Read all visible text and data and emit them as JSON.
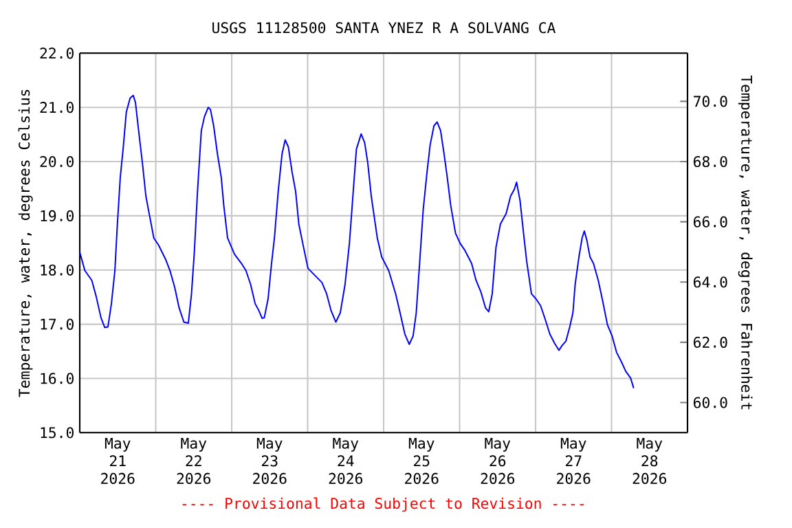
{
  "chart_data": {
    "type": "line",
    "title": "USGS 11128500 SANTA YNEZ R A SOLVANG CA",
    "ylabel": "Temperature, water, degrees Celsius",
    "y2label": "Temperature, water, degrees Fahrenheit",
    "annotations": [
      "---- Provisional Data Subject to Revision ----"
    ],
    "x": [
      "2026-05-21T00:00",
      "2026-05-21T01:36",
      "2026-05-21T03:48",
      "2026-05-21T05:12",
      "2026-05-21T06:42",
      "2026-05-21T07:54",
      "2026-05-21T08:54",
      "2026-05-21T10:00",
      "2026-05-21T11:06",
      "2026-05-21T11:48",
      "2026-05-21T12:48",
      "2026-05-21T13:42",
      "2026-05-21T14:42",
      "2026-05-21T15:54",
      "2026-05-21T16:54",
      "2026-05-21T17:36",
      "2026-05-21T18:36",
      "2026-05-21T19:48",
      "2026-05-21T20:54",
      "2026-05-21T22:00",
      "2026-05-21T23:24",
      "2026-05-22T00:54",
      "2026-05-22T03:06",
      "2026-05-22T04:30",
      "2026-05-22T06:00",
      "2026-05-22T07:24",
      "2026-05-22T08:54",
      "2026-05-22T10:18",
      "2026-05-22T11:18",
      "2026-05-22T12:12",
      "2026-05-22T13:12",
      "2026-05-22T14:24",
      "2026-05-22T15:24",
      "2026-05-22T16:36",
      "2026-05-22T17:18",
      "2026-05-22T18:18",
      "2026-05-22T19:30",
      "2026-05-22T20:42",
      "2026-05-22T21:30",
      "2026-05-22T22:42",
      "2026-05-23T00:54",
      "2026-05-23T03:06",
      "2026-05-23T04:30",
      "2026-05-23T06:00",
      "2026-05-23T07:24",
      "2026-05-23T08:36",
      "2026-05-23T09:36",
      "2026-05-23T10:18",
      "2026-05-23T11:30",
      "2026-05-23T12:30",
      "2026-05-23T13:30",
      "2026-05-23T14:42",
      "2026-05-23T15:54",
      "2026-05-23T16:54",
      "2026-05-23T17:54",
      "2026-05-23T19:06",
      "2026-05-23T20:12",
      "2026-05-23T21:12",
      "2026-05-23T22:42",
      "2026-05-24T00:06",
      "2026-05-24T02:18",
      "2026-05-24T04:30",
      "2026-05-24T06:00",
      "2026-05-24T07:24",
      "2026-05-24T08:54",
      "2026-05-24T10:18",
      "2026-05-24T11:48",
      "2026-05-24T13:12",
      "2026-05-24T14:24",
      "2026-05-24T15:24",
      "2026-05-24T16:54",
      "2026-05-24T18:00",
      "2026-05-24T19:00",
      "2026-05-24T20:06",
      "2026-05-24T22:00",
      "2026-05-24T23:24",
      "2026-05-25T01:36",
      "2026-05-25T03:48",
      "2026-05-25T05:12",
      "2026-05-25T06:42",
      "2026-05-25T08:06",
      "2026-05-25T09:18",
      "2026-05-25T10:18",
      "2026-05-25T11:30",
      "2026-05-25T12:30",
      "2026-05-25T13:42",
      "2026-05-25T14:42",
      "2026-05-25T15:54",
      "2026-05-25T16:54",
      "2026-05-25T18:00",
      "2026-05-25T19:06",
      "2026-05-25T20:06",
      "2026-05-25T21:12",
      "2026-05-25T22:42",
      "2026-05-26T00:06",
      "2026-05-26T01:36",
      "2026-05-26T03:48",
      "2026-05-26T05:12",
      "2026-05-26T06:42",
      "2026-05-26T08:12",
      "2026-05-26T09:12",
      "2026-05-26T10:18",
      "2026-05-26T11:30",
      "2026-05-26T12:54",
      "2026-05-26T14:42",
      "2026-05-26T16:06",
      "2026-05-26T17:18",
      "2026-05-26T18:00",
      "2026-05-26T19:06",
      "2026-05-26T20:12",
      "2026-05-26T21:12",
      "2026-05-26T22:42",
      "2026-05-27T00:06",
      "2026-05-27T01:36",
      "2026-05-27T03:06",
      "2026-05-27T04:30",
      "2026-05-27T06:00",
      "2026-05-27T07:24",
      "2026-05-27T08:24",
      "2026-05-27T09:36",
      "2026-05-27T10:48",
      "2026-05-27T11:48",
      "2026-05-27T12:30",
      "2026-05-27T13:42",
      "2026-05-27T14:42",
      "2026-05-27T15:24",
      "2026-05-27T16:12",
      "2026-05-27T17:12",
      "2026-05-27T18:18",
      "2026-05-27T19:48",
      "2026-05-27T21:12",
      "2026-05-27T22:42",
      "2026-05-28T00:12",
      "2026-05-28T01:36",
      "2026-05-28T03:06",
      "2026-05-28T04:30",
      "2026-05-28T06:00",
      "2026-05-28T07:00"
    ],
    "series": [
      {
        "color": "#0000ff",
        "values": [
          18.33,
          17.99,
          17.81,
          17.51,
          17.12,
          16.94,
          16.95,
          17.38,
          17.99,
          18.76,
          19.71,
          20.23,
          20.91,
          21.17,
          21.22,
          21.09,
          20.57,
          19.97,
          19.36,
          19.02,
          18.59,
          18.46,
          18.2,
          17.99,
          17.68,
          17.3,
          17.04,
          17.02,
          17.56,
          18.33,
          19.45,
          20.57,
          20.83,
          21.0,
          20.96,
          20.66,
          20.14,
          19.71,
          19.19,
          18.59,
          18.29,
          18.12,
          17.99,
          17.73,
          17.38,
          17.25,
          17.11,
          17.12,
          17.47,
          18.07,
          18.59,
          19.45,
          20.14,
          20.4,
          20.27,
          19.8,
          19.45,
          18.85,
          18.42,
          18.03,
          17.9,
          17.77,
          17.56,
          17.25,
          17.04,
          17.21,
          17.73,
          18.5,
          19.45,
          20.23,
          20.51,
          20.35,
          19.97,
          19.36,
          18.59,
          18.24,
          17.99,
          17.56,
          17.21,
          16.82,
          16.63,
          16.78,
          17.21,
          18.24,
          19.11,
          19.8,
          20.31,
          20.66,
          20.73,
          20.57,
          20.14,
          19.71,
          19.19,
          18.68,
          18.5,
          18.37,
          18.12,
          17.81,
          17.6,
          17.3,
          17.23,
          17.56,
          18.42,
          18.85,
          19.04,
          19.36,
          19.49,
          19.62,
          19.28,
          18.68,
          18.16,
          17.56,
          17.47,
          17.34,
          17.08,
          16.82,
          16.65,
          16.52,
          16.61,
          16.69,
          16.95,
          17.21,
          17.73,
          18.24,
          18.59,
          18.72,
          18.55,
          18.24,
          18.12,
          17.81,
          17.43,
          16.99,
          16.78,
          16.48,
          16.31,
          16.13,
          16.01,
          15.82
        ]
      }
    ],
    "xlim": [
      "2026-05-21T00:00",
      "2026-05-29T00:00"
    ],
    "xticks": [
      {
        "value": "2026-05-21T12:00",
        "label": "May 21 2026"
      },
      {
        "value": "2026-05-22T12:00",
        "label": "May 22 2026"
      },
      {
        "value": "2026-05-23T12:00",
        "label": "May 23 2026"
      },
      {
        "value": "2026-05-24T12:00",
        "label": "May 24 2026"
      },
      {
        "value": "2026-05-25T12:00",
        "label": "May 25 2026"
      },
      {
        "value": "2026-05-26T12:00",
        "label": "May 26 2026"
      },
      {
        "value": "2026-05-27T12:00",
        "label": "May 27 2026"
      },
      {
        "value": "2026-05-28T12:00",
        "label": "May 28 2026"
      },
      {
        "value": "2026-05-22T00:00",
        "label": null
      },
      {
        "value": "2026-05-23T00:00",
        "label": null
      },
      {
        "value": "2026-05-24T00:00",
        "label": null
      },
      {
        "value": "2026-05-25T00:00",
        "label": null
      },
      {
        "value": "2026-05-26T00:00",
        "label": null
      },
      {
        "value": "2026-05-27T00:00",
        "label": null
      },
      {
        "value": "2026-05-28T00:00",
        "label": null
      }
    ],
    "ylim": [
      15,
      22
    ],
    "yticks": [
      {
        "value": 15,
        "label": "15.0"
      },
      {
        "value": 16,
        "label": "16.0"
      },
      {
        "value": 17,
        "label": "17.0"
      },
      {
        "value": 18,
        "label": "18.0"
      },
      {
        "value": 19,
        "label": "19.0"
      },
      {
        "value": 20,
        "label": "20.0"
      },
      {
        "value": 21,
        "label": "21.0"
      },
      {
        "value": 22,
        "label": "22.0"
      }
    ],
    "y2lim": [
      59,
      71.6
    ],
    "y2ticks": [
      {
        "value": 60,
        "label": "60.0"
      },
      {
        "value": 62,
        "label": "62.0"
      },
      {
        "value": 64,
        "label": "64.0"
      },
      {
        "value": 66,
        "label": "66.0"
      },
      {
        "value": 68,
        "label": "68.0"
      },
      {
        "value": 70,
        "label": "70.0"
      }
    ],
    "grid": true,
    "marker": "none",
    "line_style": "solid"
  }
}
